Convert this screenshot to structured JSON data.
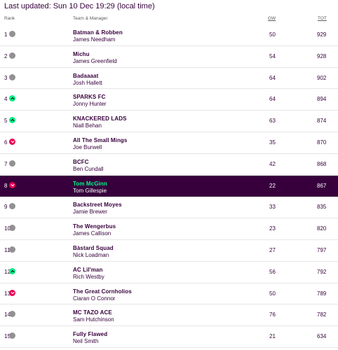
{
  "last_updated": "Last updated: Sun 10 Dec 19:29 (local time)",
  "headers": {
    "rank": "Rank",
    "team_manager": "Team & Manager",
    "gw": "GW",
    "tot": "TOT"
  },
  "colors": {
    "primary": "#37003c",
    "highlight_team": "#00ff87",
    "up": "#05f080",
    "down": "#e90052",
    "same": "#919191"
  },
  "rows": [
    {
      "rank": "1",
      "movement": "same",
      "team": "Batman & Robben",
      "manager": "James Needham",
      "gw": "50",
      "tot": "929",
      "highlight": false
    },
    {
      "rank": "2",
      "movement": "same",
      "team": "Michu",
      "manager": "James Greenfield",
      "gw": "54",
      "tot": "928",
      "highlight": false
    },
    {
      "rank": "3",
      "movement": "same",
      "team": "Badaaaat",
      "manager": "Josh Hallett",
      "gw": "64",
      "tot": "902",
      "highlight": false
    },
    {
      "rank": "4",
      "movement": "up",
      "team": "SPARKS FC",
      "manager": "Jonny Hunter",
      "gw": "64",
      "tot": "894",
      "highlight": false
    },
    {
      "rank": "5",
      "movement": "up",
      "team": "KNACKERED LADS",
      "manager": "Niall Behan",
      "gw": "63",
      "tot": "874",
      "highlight": false
    },
    {
      "rank": "6",
      "movement": "down",
      "team": "All The Small Mings",
      "manager": "Joe Burwell",
      "gw": "35",
      "tot": "870",
      "highlight": false
    },
    {
      "rank": "7",
      "movement": "same",
      "team": "BCFC",
      "manager": "Ben Cundall",
      "gw": "42",
      "tot": "868",
      "highlight": false
    },
    {
      "rank": "8",
      "movement": "down",
      "team": "Tom McGinn",
      "manager": "Tom Gillespie",
      "gw": "22",
      "tot": "867",
      "highlight": true
    },
    {
      "rank": "9",
      "movement": "same",
      "team": "Backstreet Moyes",
      "manager": "Jamie Brewer",
      "gw": "33",
      "tot": "835",
      "highlight": false
    },
    {
      "rank": "10",
      "movement": "same",
      "team": "The Wengerbus",
      "manager": "James Callison",
      "gw": "23",
      "tot": "820",
      "highlight": false
    },
    {
      "rank": "11",
      "movement": "same",
      "team": "Bàstard Squad",
      "manager": "Nick Loadman",
      "gw": "27",
      "tot": "797",
      "highlight": false
    },
    {
      "rank": "12",
      "movement": "up",
      "team": "AC Lil'man",
      "manager": "Rich Westby",
      "gw": "56",
      "tot": "792",
      "highlight": false
    },
    {
      "rank": "13",
      "movement": "down",
      "team": "The Great Cornholios",
      "manager": "Ciaran O Connor",
      "gw": "50",
      "tot": "789",
      "highlight": false
    },
    {
      "rank": "14",
      "movement": "same",
      "team": "MC TAZO ACE",
      "manager": "Sam Hutchinson",
      "gw": "76",
      "tot": "782",
      "highlight": false
    },
    {
      "rank": "15",
      "movement": "same",
      "team": "Fully Flawed",
      "manager": "Neil Smith",
      "gw": "21",
      "tot": "634",
      "highlight": false
    }
  ]
}
